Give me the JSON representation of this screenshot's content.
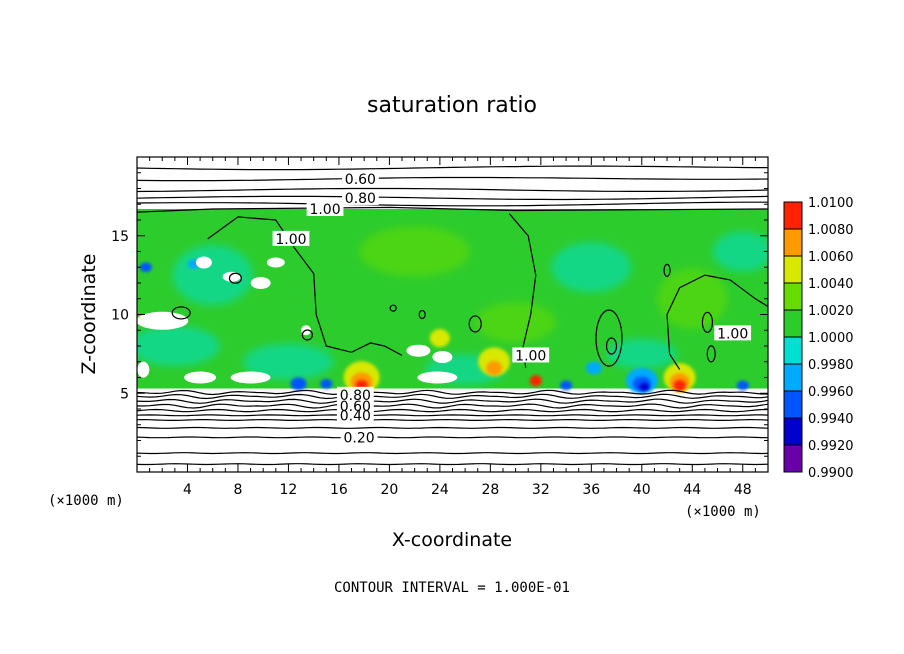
{
  "chart_data": {
    "type": "heatmap",
    "title": "saturation ratio",
    "xlabel": "X-coordinate",
    "ylabel": "Z-coordinate",
    "x_unit": "(×1000 m)",
    "y_unit": "(×1000 m)",
    "xlim": [
      0,
      50
    ],
    "ylim": [
      0,
      20
    ],
    "x_ticks": [
      4,
      8,
      12,
      16,
      20,
      24,
      28,
      32,
      36,
      40,
      44,
      48
    ],
    "y_ticks": [
      5,
      10,
      15
    ],
    "colorbar": {
      "levels": [
        "0.9900",
        "0.9920",
        "0.9940",
        "0.9960",
        "0.9980",
        "1.0000",
        "1.0020",
        "1.0040",
        "1.0060",
        "1.0080",
        "1.0100"
      ],
      "colors": [
        "#6a00a8",
        "#0000cc",
        "#0055ff",
        "#00aaff",
        "#00e0d0",
        "#2dcc2d",
        "#66dd00",
        "#d8e800",
        "#ff9900",
        "#ff2200",
        "#ff8a8a"
      ]
    },
    "contour_labels": [
      {
        "text": "0.60",
        "x": 17.7,
        "z": 18.6
      },
      {
        "text": "0.80",
        "x": 17.7,
        "z": 17.4
      },
      {
        "text": "1.00",
        "x": 14.9,
        "z": 16.7
      },
      {
        "text": "1.00",
        "x": 12.2,
        "z": 14.8
      },
      {
        "text": "1.00",
        "x": 31.2,
        "z": 7.4
      },
      {
        "text": "1.00",
        "x": 47.2,
        "z": 8.8
      },
      {
        "text": "0.80",
        "x": 17.3,
        "z": 4.9
      },
      {
        "text": "0.60",
        "x": 17.3,
        "z": 4.2
      },
      {
        "text": "0.40",
        "x": 17.3,
        "z": 3.6
      },
      {
        "text": "0.20",
        "x": 17.6,
        "z": 2.2
      }
    ],
    "contour_interval_text": "CONTOUR INTERVAL = 1.000E-01"
  }
}
